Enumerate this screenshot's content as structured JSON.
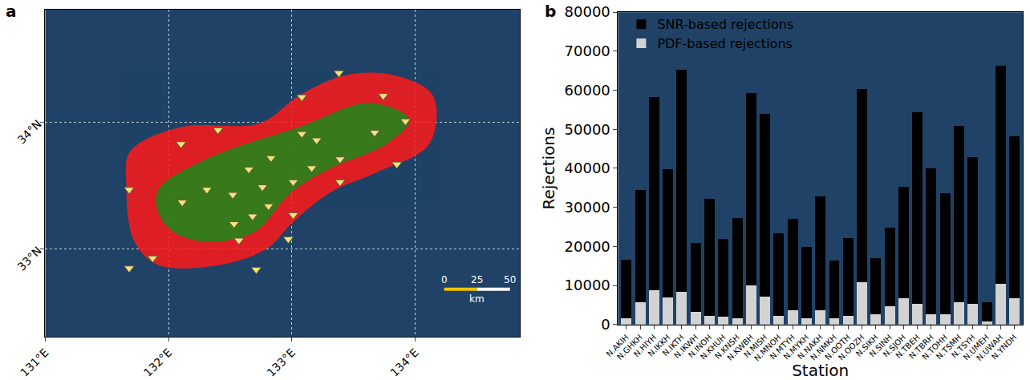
{
  "chart_data": [
    {
      "type": "map",
      "panel": "a",
      "xlim": [
        131.0,
        134.85
      ],
      "ylim": [
        32.31,
        34.89
      ],
      "xticks": [
        {
          "value": 131,
          "label": "131°E"
        },
        {
          "value": 132,
          "label": "132°E"
        },
        {
          "value": 133,
          "label": "133°E"
        },
        {
          "value": 134,
          "label": "134°E"
        }
      ],
      "yticks": [
        {
          "value": 33,
          "label": "33°N"
        },
        {
          "value": 34,
          "label": "34°N"
        }
      ],
      "grid": true,
      "series": [
        {
          "type": "area",
          "color": "#ff1a1a",
          "x": [
            131.69,
            132.1,
            132.74,
            133.06,
            133.44,
            133.82,
            134.14,
            134.11,
            133.69,
            133.31,
            132.99,
            132.8,
            132.42,
            131.91,
            131.72,
            131.66
          ],
          "y": [
            33.77,
            33.96,
            33.99,
            34.21,
            34.37,
            34.37,
            34.21,
            33.83,
            33.61,
            33.45,
            33.2,
            33.01,
            32.88,
            32.88,
            33.07,
            33.51
          ]
        },
        {
          "type": "area",
          "color": "#1a8a1a",
          "x": [
            131.91,
            132.29,
            133.06,
            133.63,
            133.95,
            133.76,
            133.31,
            132.99,
            132.68,
            132.23,
            131.97
          ],
          "y": [
            33.45,
            33.7,
            33.96,
            34.15,
            34.02,
            33.83,
            33.64,
            33.45,
            33.13,
            33.07,
            33.2
          ]
        },
        {
          "type": "scatter",
          "marker": "triangle-down",
          "color": "#f2e27a",
          "x": [
            133.38,
            133.08,
            133.74,
            133.92,
            132.4,
            133.08,
            133.2,
            133.67,
            132.1,
            132.83,
            133.39,
            133.85,
            133.16,
            133.39,
            133.01,
            132.65,
            132.31,
            132.76,
            132.52,
            131.68,
            132.11,
            132.81,
            132.53,
            133.01,
            132.68,
            132.57,
            132.97,
            131.87,
            131.68,
            132.71
          ],
          "y": [
            34.39,
            34.2,
            34.21,
            34.01,
            33.94,
            33.91,
            33.86,
            33.92,
            33.83,
            33.72,
            33.71,
            33.67,
            33.64,
            33.53,
            33.53,
            33.63,
            33.47,
            33.49,
            33.43,
            33.47,
            33.37,
            33.34,
            33.2,
            33.27,
            33.26,
            33.07,
            33.08,
            32.93,
            32.85,
            32.84
          ]
        }
      ],
      "scale_bar": {
        "ticks": [
          0,
          25,
          50
        ],
        "label": "km"
      }
    },
    {
      "type": "bar",
      "panel": "b",
      "stacked": true,
      "legend": "upper left",
      "grid": false,
      "x_label": "Station",
      "y_label": "Rejections",
      "categories": [
        "N.AKIH",
        "N.GHKH",
        "N.HIYH",
        "N.IKKH",
        "N.IKTH",
        "N.IKWH",
        "N.INOH",
        "N.KHUH",
        "N.KNSH",
        "N.KWBH",
        "N.MISH",
        "N.MNOH",
        "N.MTYH",
        "N.MYKH",
        "N.NAKH",
        "N.NMKH",
        "N.OOTH",
        "N.OOZH",
        "N.SIKH",
        "N.SINH",
        "N.SJOH",
        "N.TBEH",
        "N.TBRH",
        "N.TOHH",
        "N.TSMH",
        "N.TSYH",
        "N.UMEH",
        "N.UWAH",
        "N.YNDH"
      ],
      "series": [
        {
          "name": "SNR-based rejections",
          "color": "#000000",
          "values": [
            15000,
            28700,
            49600,
            32900,
            56900,
            17800,
            29900,
            19900,
            25600,
            49300,
            46900,
            21200,
            23400,
            18300,
            29300,
            14600,
            19800,
            49400,
            14400,
            20000,
            28500,
            49200,
            37400,
            31100,
            45000,
            37700,
            5000,
            55900,
            41500
          ]
        },
        {
          "name": "PDF-based rejections",
          "color": "#d3d3d3",
          "values": [
            1500,
            5800,
            8700,
            6900,
            8400,
            3200,
            2200,
            2100,
            1700,
            10000,
            7100,
            2200,
            3700,
            1500,
            3600,
            1700,
            2300,
            10900,
            2700,
            4700,
            6800,
            5200,
            2600,
            2600,
            5800,
            5200,
            700,
            10400,
            6800
          ]
        }
      ],
      "ylim": [
        0,
        80000
      ],
      "yticks": [
        0,
        10000,
        20000,
        30000,
        40000,
        50000,
        60000,
        70000,
        80000
      ]
    }
  ]
}
